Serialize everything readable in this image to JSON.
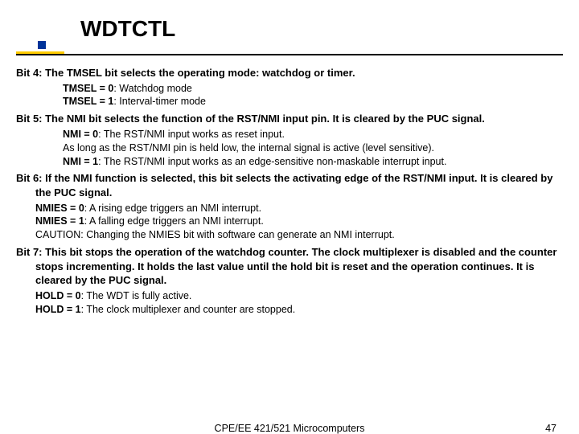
{
  "title": "WDTCTL",
  "bit4": {
    "heading": "Bit 4: The TMSEL bit selects the operating mode: watchdog or timer.",
    "l1_label": "TMSEL = 0",
    "l1_text": ": Watchdog mode",
    "l2_label": "TMSEL = 1",
    "l2_text": ": Interval-timer mode"
  },
  "bit5": {
    "heading": "Bit 5: The NMI bit selects the function of the RST/NMI input pin. It is cleared by the PUC signal.",
    "l1_label": "NMI = 0",
    "l1_text": ": The RST/NMI input works as reset input.",
    "l1_extra": "As long as the RST/NMI pin is held low, the internal signal is active (level sensitive).",
    "l2_label": "NMI = 1",
    "l2_text": ": The RST/NMI input works as an edge-sensitive non-maskable interrupt input."
  },
  "bit6": {
    "heading": "Bit 6: If the NMI function is selected, this bit selects the activating edge of the RST/NMI input. It is cleared by the PUC signal.",
    "l1_label": "NMIES = 0",
    "l1_text": ": A rising edge triggers an NMI interrupt.",
    "l2_label": "NMIES = 1",
    "l2_text": ": A falling edge triggers an NMI interrupt.",
    "caution": "CAUTION: Changing the NMIES bit with software can generate an NMI interrupt."
  },
  "bit7": {
    "heading": "Bit 7: This bit stops the operation of the watchdog counter. The clock multiplexer is disabled and the counter stops incrementing. It holds the last value until the hold bit is reset and the operation continues. It is cleared by the PUC signal.",
    "l1_label": "HOLD = 0",
    "l1_text": ": The WDT is fully active.",
    "l2_label": "HOLD = 1",
    "l2_text": ": The clock multiplexer and counter are stopped."
  },
  "footer": {
    "center": "CPE/EE 421/521 Microcomputers",
    "page": "47"
  },
  "colors": {
    "accent": "#ffcc00",
    "square": "#003399",
    "text": "#000000",
    "bg": "#ffffff"
  }
}
